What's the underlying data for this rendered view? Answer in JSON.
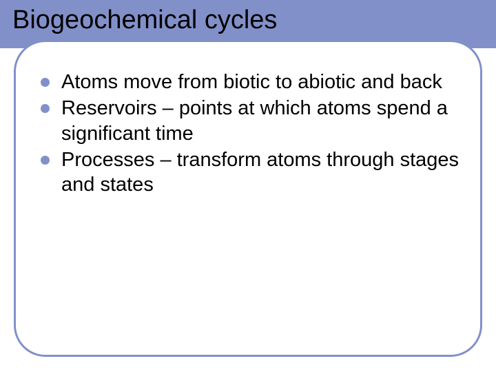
{
  "slide": {
    "title": "Biogeochemical cycles",
    "title_fontsize": 38,
    "title_color": "#000000",
    "background_color": "#ffffff",
    "accent_color": "#8290c9",
    "header_band_height": 70,
    "content_box": {
      "border_color": "#8290c9",
      "border_width": 3,
      "border_radius": 46,
      "background": "#ffffff"
    },
    "bullets": [
      {
        "text": "Atoms move from biotic to abiotic and back"
      },
      {
        "text": "Reservoirs – points at which atoms spend a significant time"
      },
      {
        "text": "Processes – transform atoms through stages and states"
      }
    ],
    "bullet_fontsize": 29,
    "bullet_text_color": "#000000",
    "bullet_dot_color": "#8290c9",
    "bullet_dot_size": 13
  }
}
